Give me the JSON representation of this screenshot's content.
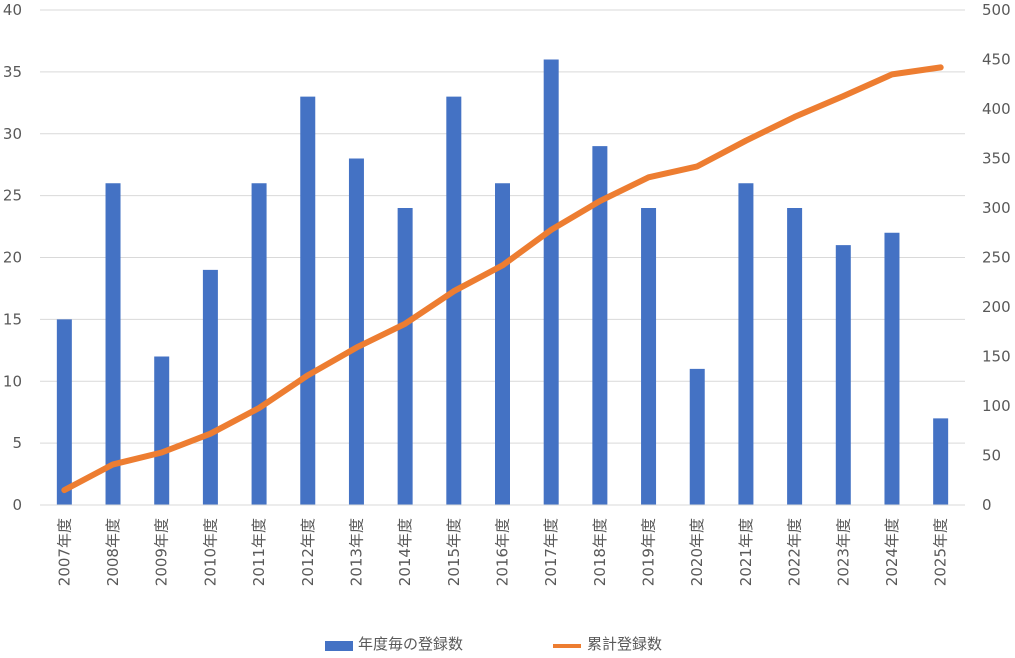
{
  "chart_data": {
    "type": "bar",
    "title": "",
    "xlabel": "",
    "ylabel": "",
    "y2label": "",
    "categories": [
      "2007年度",
      "2008年度",
      "2009年度",
      "2010年度",
      "2011年度",
      "2012年度",
      "2013年度",
      "2014年度",
      "2015年度",
      "2016年度",
      "2017年度",
      "2018年度",
      "2019年度",
      "2020年度",
      "2021年度",
      "2022年度",
      "2023年度",
      "2024年度",
      "2025年度"
    ],
    "series": [
      {
        "name": "年度毎の登録数",
        "type": "bar",
        "axis": "left",
        "color": "#4472C4",
        "values": [
          15,
          26,
          12,
          19,
          26,
          33,
          28,
          24,
          33,
          26,
          36,
          29,
          24,
          11,
          26,
          24,
          21,
          22,
          7
        ]
      },
      {
        "name": "累計登録数",
        "type": "line",
        "axis": "right",
        "color": "#ED7D31",
        "values": [
          15,
          41,
          53,
          72,
          98,
          131,
          159,
          183,
          216,
          242,
          278,
          307,
          331,
          342,
          368,
          392,
          413,
          435,
          442
        ]
      }
    ],
    "ylim": [
      0,
      40
    ],
    "y_ticks": [
      "0",
      "5",
      "10",
      "15",
      "20",
      "25",
      "30",
      "35",
      "40"
    ],
    "y2lim": [
      0,
      500
    ],
    "y2_ticks": [
      "0",
      "50",
      "100",
      "150",
      "200",
      "250",
      "300",
      "350",
      "400",
      "450",
      "500"
    ],
    "grid": true,
    "legend_position": "bottom"
  }
}
